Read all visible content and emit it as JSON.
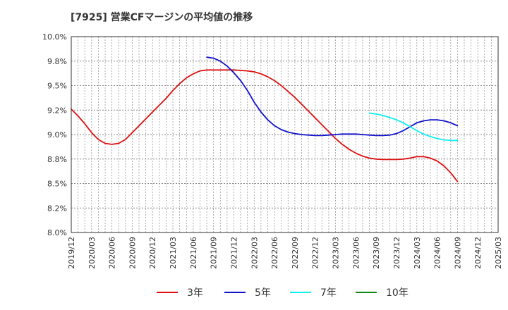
{
  "chart_data": {
    "type": "line",
    "title": "[7925]  営業CFマージンの平均値の推移",
    "xlabel": "",
    "ylabel": "",
    "ylim": [
      8.0,
      10.0
    ],
    "y_ticks": [
      "10.0%",
      "9.8%",
      "9.5%",
      "9.2%",
      "9.0%",
      "8.8%",
      "8.5%",
      "8.2%",
      "8.0%"
    ],
    "x_ticks": [
      "2019/12",
      "2020/03",
      "2020/06",
      "2020/09",
      "2020/12",
      "2021/03",
      "2021/06",
      "2021/09",
      "2021/12",
      "2022/03",
      "2022/06",
      "2022/09",
      "2022/12",
      "2023/03",
      "2023/06",
      "2023/09",
      "2023/12",
      "2024/03",
      "2024/06",
      "2024/09",
      "2024/12",
      "2025/03"
    ],
    "grid": true,
    "legend_position": "bottom",
    "series": [
      {
        "name": "3年",
        "color": "#dd1111",
        "points": [
          [
            "2019/12",
            9.26
          ],
          [
            "2020/01",
            9.19
          ],
          [
            "2020/02",
            9.11
          ],
          [
            "2020/03",
            9.02
          ],
          [
            "2020/04",
            8.95
          ],
          [
            "2020/05",
            8.91
          ],
          [
            "2020/06",
            8.9
          ],
          [
            "2020/07",
            8.91
          ],
          [
            "2020/08",
            8.95
          ],
          [
            "2020/09",
            9.02
          ],
          [
            "2020/10",
            9.09
          ],
          [
            "2020/11",
            9.16
          ],
          [
            "2020/12",
            9.23
          ],
          [
            "2021/01",
            9.3
          ],
          [
            "2021/02",
            9.37
          ],
          [
            "2021/03",
            9.45
          ],
          [
            "2021/04",
            9.52
          ],
          [
            "2021/05",
            9.58
          ],
          [
            "2021/06",
            9.62
          ],
          [
            "2021/07",
            9.65
          ],
          [
            "2021/08",
            9.66
          ],
          [
            "2021/09",
            9.66
          ],
          [
            "2021/10",
            9.66
          ],
          [
            "2021/11",
            9.66
          ],
          [
            "2021/12",
            9.66
          ],
          [
            "2022/01",
            9.655
          ],
          [
            "2022/02",
            9.65
          ],
          [
            "2022/03",
            9.64
          ],
          [
            "2022/04",
            9.62
          ],
          [
            "2022/05",
            9.59
          ],
          [
            "2022/06",
            9.55
          ],
          [
            "2022/07",
            9.5
          ],
          [
            "2022/08",
            9.44
          ],
          [
            "2022/09",
            9.38
          ],
          [
            "2022/10",
            9.31
          ],
          [
            "2022/11",
            9.24
          ],
          [
            "2022/12",
            9.17
          ],
          [
            "2023/01",
            9.1
          ],
          [
            "2023/02",
            9.03
          ],
          [
            "2023/03",
            8.96
          ],
          [
            "2023/04",
            8.9
          ],
          [
            "2023/05",
            8.85
          ],
          [
            "2023/06",
            8.81
          ],
          [
            "2023/07",
            8.78
          ],
          [
            "2023/08",
            8.76
          ],
          [
            "2023/09",
            8.75
          ],
          [
            "2023/10",
            8.745
          ],
          [
            "2023/11",
            8.745
          ],
          [
            "2023/12",
            8.745
          ],
          [
            "2024/01",
            8.75
          ],
          [
            "2024/02",
            8.76
          ],
          [
            "2024/03",
            8.775
          ],
          [
            "2024/04",
            8.775
          ],
          [
            "2024/05",
            8.76
          ],
          [
            "2024/06",
            8.73
          ],
          [
            "2024/07",
            8.68
          ],
          [
            "2024/08",
            8.61
          ],
          [
            "2024/09",
            8.52
          ]
        ]
      },
      {
        "name": "5年",
        "color": "#1111cc",
        "points": [
          [
            "2021/08",
            9.79
          ],
          [
            "2021/09",
            9.78
          ],
          [
            "2021/10",
            9.75
          ],
          [
            "2021/11",
            9.7
          ],
          [
            "2021/12",
            9.63
          ],
          [
            "2022/01",
            9.55
          ],
          [
            "2022/02",
            9.45
          ],
          [
            "2022/03",
            9.33
          ],
          [
            "2022/04",
            9.23
          ],
          [
            "2022/05",
            9.15
          ],
          [
            "2022/06",
            9.09
          ],
          [
            "2022/07",
            9.05
          ],
          [
            "2022/08",
            9.025
          ],
          [
            "2022/09",
            9.01
          ],
          [
            "2022/10",
            9.0
          ],
          [
            "2022/11",
            8.995
          ],
          [
            "2022/12",
            8.99
          ],
          [
            "2023/01",
            8.99
          ],
          [
            "2023/02",
            8.995
          ],
          [
            "2023/03",
            9.0
          ],
          [
            "2023/04",
            9.005
          ],
          [
            "2023/05",
            9.005
          ],
          [
            "2023/06",
            9.005
          ],
          [
            "2023/07",
            9.0
          ],
          [
            "2023/08",
            8.995
          ],
          [
            "2023/09",
            8.99
          ],
          [
            "2023/10",
            8.99
          ],
          [
            "2023/11",
            8.995
          ],
          [
            "2023/12",
            9.01
          ],
          [
            "2024/01",
            9.04
          ],
          [
            "2024/02",
            9.08
          ],
          [
            "2024/03",
            9.12
          ],
          [
            "2024/04",
            9.14
          ],
          [
            "2024/05",
            9.15
          ],
          [
            "2024/06",
            9.15
          ],
          [
            "2024/07",
            9.14
          ],
          [
            "2024/08",
            9.12
          ],
          [
            "2024/09",
            9.09
          ]
        ]
      },
      {
        "name": "7年",
        "color": "#11eeee",
        "points": [
          [
            "2023/08",
            9.22
          ],
          [
            "2023/09",
            9.21
          ],
          [
            "2023/10",
            9.195
          ],
          [
            "2023/11",
            9.175
          ],
          [
            "2023/12",
            9.15
          ],
          [
            "2024/01",
            9.12
          ],
          [
            "2024/02",
            9.08
          ],
          [
            "2024/03",
            9.04
          ],
          [
            "2024/04",
            9.005
          ],
          [
            "2024/05",
            8.98
          ],
          [
            "2024/06",
            8.96
          ],
          [
            "2024/07",
            8.945
          ],
          [
            "2024/08",
            8.94
          ],
          [
            "2024/09",
            8.94
          ]
        ]
      },
      {
        "name": "10年",
        "color": "#118811",
        "points": []
      }
    ]
  }
}
